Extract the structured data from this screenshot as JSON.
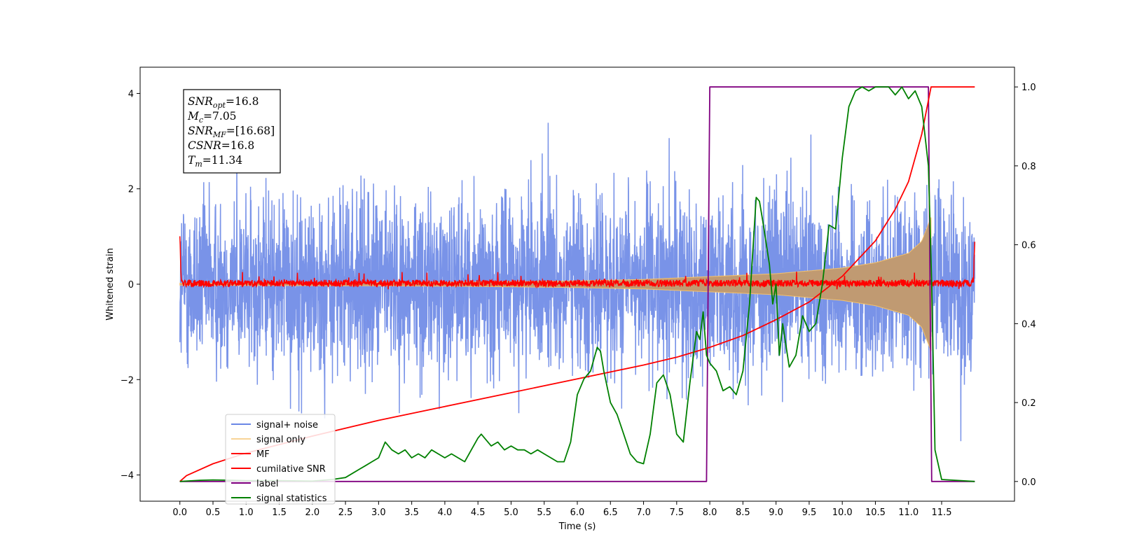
{
  "chart_data": {
    "type": "line",
    "title": "",
    "xlabel": "Time (s)",
    "ylabel": "Whitened strain",
    "xlim": [
      -0.6,
      12.6
    ],
    "ylim": [
      -4.55,
      4.55
    ],
    "y2lim": [
      -0.05,
      1.05
    ],
    "xticks": [
      "0.0",
      "0.5",
      "1.0",
      "1.5",
      "2.0",
      "2.5",
      "3.0",
      "3.5",
      "4.0",
      "4.5",
      "5.0",
      "5.5",
      "6.0",
      "6.5",
      "7.0",
      "7.5",
      "8.0",
      "8.5",
      "9.0",
      "9.5",
      "10.0",
      "10.5",
      "11.0",
      "11.5"
    ],
    "yticks": [
      "−4",
      "−2",
      "0",
      "2",
      "4"
    ],
    "y2ticks": [
      "0.0",
      "0.2",
      "0.4",
      "0.6",
      "0.8",
      "1.0"
    ],
    "grid": false,
    "legend_position": "lower-left",
    "annotation": {
      "lines": [
        {
          "base": "SNR",
          "sub": "opt",
          "value": "=16.8"
        },
        {
          "base": "M",
          "sub": "c",
          "value": "=7.05"
        },
        {
          "base": "SNR",
          "sub": "MF",
          "value": "=[16.68]"
        },
        {
          "base": "CSNR",
          "sub": "",
          "value": "=16.8"
        },
        {
          "base": "T",
          "sub": "m",
          "value": "=11.34"
        }
      ]
    },
    "series": [
      {
        "name": "signal+ noise",
        "axis": "left",
        "color": "#6a87e6",
        "kind": "noise",
        "x_range": [
          0,
          12
        ],
        "typical_abs_peak": 2.4,
        "max_abs_peak": 4.1
      },
      {
        "name": "signal only",
        "axis": "left",
        "color": "#f5c26b",
        "kind": "chirp-envelope",
        "envelope": [
          [
            0.0,
            0.02
          ],
          [
            2.0,
            0.03
          ],
          [
            4.0,
            0.04
          ],
          [
            6.0,
            0.07
          ],
          [
            7.0,
            0.1
          ],
          [
            8.0,
            0.16
          ],
          [
            9.0,
            0.22
          ],
          [
            10.0,
            0.34
          ],
          [
            10.5,
            0.45
          ],
          [
            11.0,
            0.65
          ],
          [
            11.2,
            0.9
          ],
          [
            11.34,
            1.4
          ]
        ]
      },
      {
        "name": "MF",
        "axis": "left",
        "color": "#ff0000",
        "kind": "jitter",
        "x": [
          0.0,
          0.02,
          0.05,
          11.96,
          11.98,
          12.0
        ],
        "y": [
          1.0,
          0.1,
          0.02,
          0.02,
          0.1,
          0.9
        ],
        "jitter_amplitude": 0.12
      },
      {
        "name": "cumilative SNR",
        "axis": "right",
        "color": "#ff0000",
        "kind": "line",
        "x": [
          0.0,
          0.1,
          0.5,
          1.0,
          2.0,
          3.0,
          4.0,
          5.0,
          6.0,
          7.0,
          7.5,
          8.0,
          8.5,
          9.0,
          9.5,
          10.0,
          10.5,
          10.8,
          11.0,
          11.2,
          11.34,
          11.4,
          11.5,
          12.0
        ],
        "y": [
          0.0,
          0.015,
          0.045,
          0.072,
          0.115,
          0.155,
          0.19,
          0.225,
          0.26,
          0.295,
          0.315,
          0.34,
          0.37,
          0.41,
          0.455,
          0.52,
          0.61,
          0.69,
          0.76,
          0.88,
          1.0,
          1.0,
          1.0,
          1.0
        ]
      },
      {
        "name": "label",
        "axis": "right",
        "color": "#800080",
        "kind": "line",
        "x": [
          0.0,
          7.95,
          8.0,
          11.3,
          11.35,
          12.0
        ],
        "y": [
          0.0,
          0.0,
          1.0,
          1.0,
          0.0,
          0.0
        ]
      },
      {
        "name": "signal statistics",
        "axis": "right",
        "color": "#008000",
        "kind": "line",
        "x": [
          0.0,
          0.3,
          0.5,
          0.8,
          1.0,
          1.5,
          2.0,
          2.3,
          2.5,
          2.7,
          2.8,
          2.9,
          3.0,
          3.05,
          3.1,
          3.2,
          3.3,
          3.4,
          3.5,
          3.6,
          3.7,
          3.8,
          3.9,
          4.0,
          4.1,
          4.2,
          4.3,
          4.4,
          4.5,
          4.55,
          4.6,
          4.7,
          4.8,
          4.9,
          5.0,
          5.1,
          5.2,
          5.3,
          5.4,
          5.5,
          5.6,
          5.7,
          5.8,
          5.9,
          6.0,
          6.1,
          6.2,
          6.3,
          6.35,
          6.4,
          6.5,
          6.6,
          6.7,
          6.8,
          6.9,
          7.0,
          7.1,
          7.2,
          7.3,
          7.4,
          7.5,
          7.6,
          7.7,
          7.8,
          7.85,
          7.9,
          7.95,
          8.0,
          8.1,
          8.2,
          8.3,
          8.4,
          8.5,
          8.6,
          8.7,
          8.75,
          8.8,
          8.9,
          8.95,
          9.0,
          9.05,
          9.1,
          9.2,
          9.3,
          9.4,
          9.5,
          9.6,
          9.7,
          9.8,
          9.9,
          10.0,
          10.1,
          10.2,
          10.3,
          10.4,
          10.5,
          10.6,
          10.7,
          10.8,
          10.9,
          11.0,
          11.1,
          11.2,
          11.3,
          11.35,
          11.4,
          11.5,
          12.0
        ],
        "y": [
          0.0,
          0.003,
          0.004,
          0.003,
          0.002,
          0.002,
          0.001,
          0.005,
          0.01,
          0.03,
          0.04,
          0.05,
          0.06,
          0.08,
          0.1,
          0.08,
          0.07,
          0.08,
          0.06,
          0.07,
          0.06,
          0.08,
          0.07,
          0.06,
          0.07,
          0.06,
          0.05,
          0.08,
          0.11,
          0.12,
          0.11,
          0.09,
          0.1,
          0.08,
          0.09,
          0.08,
          0.08,
          0.07,
          0.08,
          0.07,
          0.06,
          0.05,
          0.05,
          0.1,
          0.22,
          0.26,
          0.28,
          0.34,
          0.33,
          0.28,
          0.2,
          0.17,
          0.12,
          0.07,
          0.05,
          0.045,
          0.12,
          0.25,
          0.27,
          0.22,
          0.12,
          0.1,
          0.25,
          0.38,
          0.36,
          0.43,
          0.32,
          0.3,
          0.28,
          0.23,
          0.24,
          0.22,
          0.28,
          0.45,
          0.72,
          0.71,
          0.66,
          0.55,
          0.45,
          0.5,
          0.32,
          0.4,
          0.29,
          0.32,
          0.42,
          0.38,
          0.4,
          0.5,
          0.65,
          0.64,
          0.82,
          0.95,
          0.99,
          1.0,
          0.99,
          1.0,
          1.0,
          1.0,
          0.98,
          1.0,
          0.97,
          0.99,
          0.95,
          0.8,
          0.5,
          0.08,
          0.005,
          0.0
        ]
      }
    ]
  }
}
